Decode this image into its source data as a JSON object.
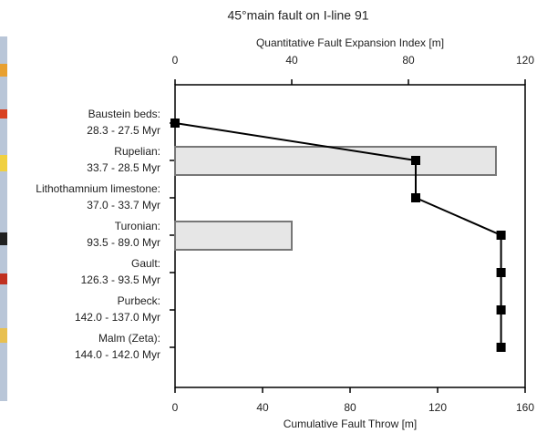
{
  "chart_data": {
    "type": "combo",
    "title": "45°main fault on I-line 91",
    "categories": [
      [
        "Baustein beds:",
        "28.3 - 27.5 Myr"
      ],
      [
        "Rupelian:",
        "33.7 - 28.5 Myr"
      ],
      [
        "Lithothamnium limestone:",
        "37.0 - 33.7 Myr"
      ],
      [
        "Turonian:",
        "93.5 - 89.0 Myr"
      ],
      [
        "Gault:",
        "126.3 - 93.5 Myr"
      ],
      [
        "Purbeck:",
        "142.0 - 137.0 Myr"
      ],
      [
        "Malm (Zeta):",
        "144.0 - 142.0 Myr"
      ]
    ],
    "series": [
      {
        "name": "Quantitative Fault Expansion Index [m]",
        "type": "bar",
        "axis": "x2",
        "color": "#e6e6e6",
        "values": [
          null,
          110,
          null,
          40,
          null,
          null,
          null
        ]
      },
      {
        "name": "Cumulative Fault Throw [m]",
        "type": "line",
        "axis": "x",
        "color": "#000000",
        "values": [
          0,
          110,
          110,
          149,
          149,
          149,
          149
        ]
      }
    ],
    "xlim": [
      0,
      160
    ],
    "xticks": [
      0,
      40,
      80,
      120,
      160
    ],
    "x2lim": [
      0,
      120
    ],
    "x2ticks": [
      0,
      40,
      80,
      120
    ]
  }
}
